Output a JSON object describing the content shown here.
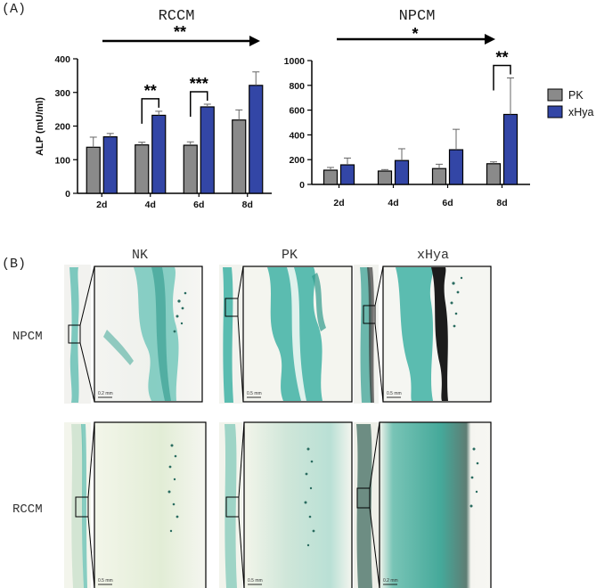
{
  "panels": {
    "a_label": "(A)",
    "b_label": "(B)"
  },
  "colors": {
    "pk": "#8a8a8a",
    "xhya": "#3346a6",
    "tissue": "#3fb2a5"
  },
  "chart_data": [
    {
      "type": "bar",
      "title": "RCCM",
      "trend_significance": "**",
      "categories": [
        "2d",
        "4d",
        "6d",
        "8d"
      ],
      "ylabel": "ALP (mU/ml)",
      "ylim": [
        0,
        400
      ],
      "yticks": [
        0,
        100,
        200,
        300,
        400
      ],
      "series": [
        {
          "name": "PK",
          "values": [
            137,
            144,
            143,
            218
          ],
          "errors": [
            30,
            8,
            10,
            30
          ]
        },
        {
          "name": "xHya",
          "values": [
            168,
            232,
            257,
            321
          ],
          "errors": [
            10,
            12,
            8,
            40
          ]
        }
      ],
      "pair_significance": [
        "",
        "**",
        "***",
        ""
      ]
    },
    {
      "type": "bar",
      "title": "NPCM",
      "trend_significance": "*",
      "categories": [
        "2d",
        "4d",
        "6d",
        "8d"
      ],
      "ylabel": "",
      "ylim": [
        0,
        1000
      ],
      "yticks": [
        0,
        200,
        400,
        600,
        800,
        1000
      ],
      "series": [
        {
          "name": "PK",
          "values": [
            115,
            108,
            128,
            167
          ],
          "errors": [
            22,
            12,
            35,
            15
          ]
        },
        {
          "name": "xHya",
          "values": [
            158,
            193,
            280,
            565
          ],
          "errors": [
            55,
            95,
            165,
            295
          ]
        }
      ],
      "pair_significance": [
        "",
        "",
        "",
        "**"
      ]
    }
  ],
  "legend": [
    {
      "name": "PK",
      "color": "#8a8a8a"
    },
    {
      "name": "xHya",
      "color": "#3346a6"
    }
  ],
  "histology": {
    "columns": [
      "NK",
      "PK",
      "xHya"
    ],
    "rows": [
      "NPCM",
      "RCCM"
    ],
    "scale_bars": [
      [
        "0.2 mm",
        "0.5 mm",
        "0.5 mm"
      ],
      [
        "0.5 mm",
        "0.5 mm",
        "0.2 mm"
      ]
    ]
  }
}
